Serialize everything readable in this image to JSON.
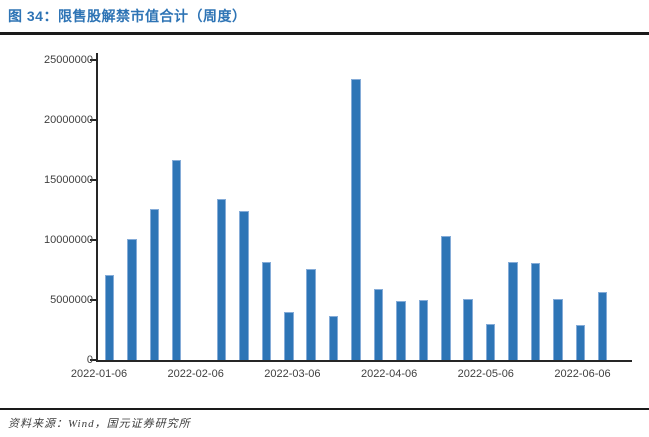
{
  "figure": {
    "title": "图 34：限售股解禁市值合计（周度）",
    "source": "资料来源：Wind，国元证券研究所"
  },
  "colors": {
    "title_blue": "#2E74B5",
    "bar_fill": "#2E75B6",
    "bar_edge": "#85ACD8",
    "axis": "#262626",
    "tick_text": "#404040",
    "rule": "#1a1a1a"
  },
  "chart_data": {
    "type": "bar",
    "title": "限售股解禁市值合计（周度）",
    "xlabel": "",
    "ylabel": "",
    "ylim": [
      0,
      25000000
    ],
    "grid": false,
    "legend": false,
    "y_tick_labels": [
      "0",
      "5000000",
      "10000000",
      "15000000",
      "20000000",
      "25000000"
    ],
    "x_tick_labels": [
      "2022-01-06",
      "2022-02-06",
      "2022-03-06",
      "2022-04-06",
      "2022-05-06",
      "2022-06-06"
    ],
    "x": "weekly slots; null = week with no bar",
    "values": [
      7100000,
      10100000,
      12600000,
      16700000,
      null,
      13400000,
      12400000,
      8200000,
      4000000,
      7600000,
      3700000,
      23400000,
      5900000,
      4900000,
      5000000,
      10300000,
      5100000,
      3000000,
      8200000,
      8100000,
      5100000,
      2900000,
      5700000
    ]
  }
}
